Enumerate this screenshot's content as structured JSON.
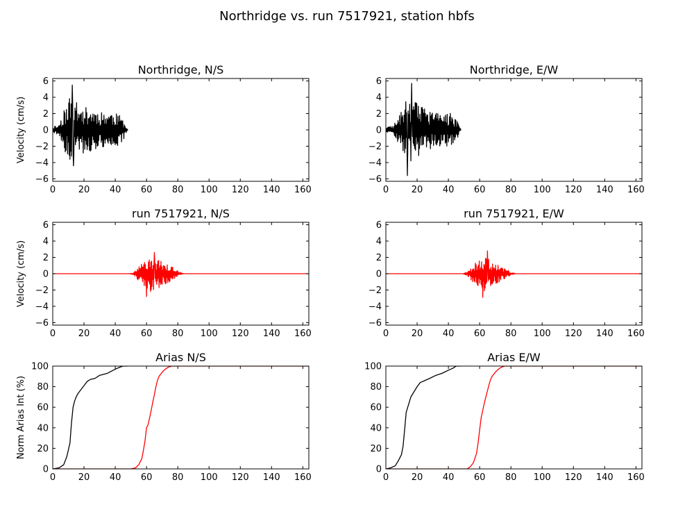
{
  "figure": {
    "title": "Northridge vs. run 7517921, station hbfs",
    "background": "#ffffff"
  },
  "chart_data": [
    {
      "id": "ns-data",
      "type": "line",
      "title": "Northridge, N/S",
      "xlabel": "",
      "ylabel": "Velocity (cm/s)",
      "xlim": [
        0,
        163.84
      ],
      "ylim": [
        -6.3,
        6.3
      ],
      "xticks": [
        0,
        20,
        40,
        60,
        80,
        100,
        120,
        140,
        160
      ],
      "yticks": [
        -6,
        -4,
        -2,
        0,
        2,
        4,
        6
      ],
      "grid": false,
      "series": [
        {
          "color": "#000000",
          "t_start": 0,
          "t_end": 48,
          "dt": 0.25,
          "seed": 11,
          "envelope": [
            [
              0,
              0.4
            ],
            [
              4,
              0.7
            ],
            [
              7,
              2.4
            ],
            [
              10,
              3.5
            ],
            [
              12,
              4.9
            ],
            [
              14,
              3.6
            ],
            [
              17,
              3.0
            ],
            [
              21,
              2.8
            ],
            [
              26,
              2.6
            ],
            [
              32,
              2.2
            ],
            [
              36,
              2.3
            ],
            [
              41,
              2.0
            ],
            [
              44,
              1.6
            ],
            [
              46,
              0.9
            ],
            [
              48,
              0.1
            ]
          ],
          "peaks": [
            [
              12.5,
              5.5
            ],
            [
              13.2,
              -4.4
            ],
            [
              11.0,
              -3.6
            ],
            [
              8.6,
              -2.5
            ]
          ]
        }
      ]
    },
    {
      "id": "ew-data",
      "type": "line",
      "title": "Northridge, E/W",
      "xlabel": "",
      "ylabel": "",
      "xlim": [
        0,
        163.84
      ],
      "ylim": [
        -6.3,
        6.3
      ],
      "xticks": [
        0,
        20,
        40,
        60,
        80,
        100,
        120,
        140,
        160
      ],
      "yticks": [
        -6,
        -4,
        -2,
        0,
        2,
        4,
        6
      ],
      "grid": false,
      "series": [
        {
          "color": "#000000",
          "t_start": 0,
          "t_end": 48,
          "dt": 0.25,
          "seed": 23,
          "envelope": [
            [
              0,
              0.3
            ],
            [
              5,
              0.6
            ],
            [
              8,
              1.8
            ],
            [
              11,
              2.6
            ],
            [
              13,
              3.8
            ],
            [
              15,
              4.2
            ],
            [
              18,
              3.6
            ],
            [
              22,
              3.0
            ],
            [
              27,
              2.6
            ],
            [
              32,
              2.1
            ],
            [
              37,
              2.2
            ],
            [
              42,
              2.0
            ],
            [
              45,
              1.4
            ],
            [
              47,
              0.4
            ],
            [
              48,
              0.1
            ]
          ],
          "peaks": [
            [
              16.5,
              5.7
            ],
            [
              13.8,
              -5.6
            ],
            [
              12.0,
              -2.8
            ]
          ]
        }
      ]
    },
    {
      "id": "ns-syn",
      "type": "line",
      "title": "run 7517921, N/S",
      "xlabel": "",
      "ylabel": "Velocity (cm/s)",
      "xlim": [
        0,
        163.84
      ],
      "ylim": [
        -6.3,
        6.3
      ],
      "xticks": [
        0,
        20,
        40,
        60,
        80,
        100,
        120,
        140,
        160
      ],
      "yticks": [
        -6,
        -4,
        -2,
        0,
        2,
        4,
        6
      ],
      "grid": false,
      "series": [
        {
          "color": "#ff0000",
          "t_start": 0,
          "t_end": 163.84,
          "dt": 0.25,
          "seed": 37,
          "envelope": [
            [
              0,
              0
            ],
            [
              49,
              0
            ],
            [
              52,
              0.15
            ],
            [
              55,
              0.9
            ],
            [
              58,
              1.6
            ],
            [
              61,
              2.0
            ],
            [
              64,
              2.4
            ],
            [
              67,
              1.9
            ],
            [
              70,
              1.4
            ],
            [
              74,
              1.2
            ],
            [
              78,
              0.6
            ],
            [
              81,
              0.2
            ],
            [
              84,
              0
            ],
            [
              163.84,
              0
            ]
          ],
          "peaks": [
            [
              60,
              -2.8
            ],
            [
              65,
              2.6
            ]
          ]
        }
      ]
    },
    {
      "id": "ew-syn",
      "type": "line",
      "title": "run 7517921, E/W",
      "xlabel": "",
      "ylabel": "",
      "xlim": [
        0,
        163.84
      ],
      "ylim": [
        -6.3,
        6.3
      ],
      "xticks": [
        0,
        20,
        40,
        60,
        80,
        100,
        120,
        140,
        160
      ],
      "yticks": [
        -6,
        -4,
        -2,
        0,
        2,
        4,
        6
      ],
      "grid": false,
      "series": [
        {
          "color": "#ff0000",
          "t_start": 0,
          "t_end": 163.84,
          "dt": 0.25,
          "seed": 53,
          "envelope": [
            [
              0,
              0
            ],
            [
              49,
              0
            ],
            [
              52,
              0.2
            ],
            [
              55,
              0.9
            ],
            [
              58,
              1.5
            ],
            [
              61,
              1.9
            ],
            [
              63,
              2.1
            ],
            [
              66,
              1.8
            ],
            [
              69,
              1.4
            ],
            [
              73,
              1.0
            ],
            [
              77,
              0.6
            ],
            [
              80,
              0.2
            ],
            [
              83,
              0
            ],
            [
              163.84,
              0
            ]
          ],
          "peaks": [
            [
              62,
              -2.9
            ],
            [
              65,
              2.8
            ]
          ]
        }
      ]
    },
    {
      "id": "ns-arias",
      "type": "line",
      "title": "Arias N/S",
      "xlabel": "",
      "ylabel": "Norm Arias Int (%)",
      "xlim": [
        0,
        163.84
      ],
      "ylim": [
        0,
        100
      ],
      "xticks": [
        0,
        20,
        40,
        60,
        80,
        100,
        120,
        140,
        160
      ],
      "yticks": [
        0,
        20,
        40,
        60,
        80,
        100
      ],
      "grid": false,
      "series": [
        {
          "color": "#000000",
          "x": [
            0,
            4,
            7,
            9,
            11,
            12,
            13,
            14,
            15,
            16,
            18,
            20,
            22,
            24,
            27,
            30,
            35,
            40,
            43,
            45,
            48
          ],
          "y": [
            0,
            1,
            4,
            12,
            25,
            45,
            60,
            66,
            70,
            73,
            77,
            81,
            85,
            87,
            88,
            91,
            93,
            97,
            99,
            100,
            100
          ]
        },
        {
          "color": "#ff0000",
          "x": [
            0,
            50,
            53,
            55,
            57,
            58,
            59,
            60,
            61,
            62,
            63,
            64,
            65,
            66,
            67,
            68,
            70,
            72,
            74,
            76,
            80,
            163.84
          ],
          "y": [
            0,
            0,
            1,
            4,
            10,
            18,
            27,
            40,
            43,
            50,
            57,
            65,
            72,
            80,
            86,
            90,
            94,
            97,
            99,
            100,
            100,
            100
          ]
        }
      ]
    },
    {
      "id": "ew-arias",
      "type": "line",
      "title": "Arias E/W",
      "xlabel": "",
      "ylabel": "",
      "xlim": [
        0,
        163.84
      ],
      "ylim": [
        0,
        100
      ],
      "xticks": [
        0,
        20,
        40,
        60,
        80,
        100,
        120,
        140,
        160
      ],
      "yticks": [
        0,
        20,
        40,
        60,
        80,
        100
      ],
      "grid": false,
      "series": [
        {
          "color": "#000000",
          "x": [
            0,
            3,
            6,
            8,
            10,
            11,
            12,
            13,
            14,
            15,
            16,
            18,
            20,
            22,
            25,
            28,
            32,
            36,
            40,
            43,
            45,
            48
          ],
          "y": [
            0,
            1,
            3,
            8,
            14,
            22,
            38,
            55,
            60,
            65,
            70,
            75,
            80,
            84,
            86,
            88,
            91,
            93,
            96,
            98,
            100,
            100
          ]
        },
        {
          "color": "#ff0000",
          "x": [
            0,
            52,
            54,
            56,
            58,
            59,
            60,
            61,
            62,
            63,
            64,
            65,
            66,
            67,
            68,
            70,
            72,
            74,
            76,
            80,
            163.84
          ],
          "y": [
            0,
            0,
            2,
            6,
            15,
            25,
            38,
            50,
            57,
            64,
            70,
            76,
            82,
            87,
            90,
            94,
            97,
            99,
            100,
            100,
            100
          ]
        }
      ]
    }
  ]
}
